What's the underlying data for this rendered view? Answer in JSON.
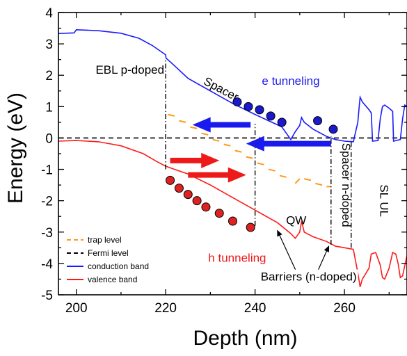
{
  "chart_data": {
    "type": "line",
    "xlabel": "Depth (nm)",
    "ylabel": "Energy (eV)",
    "xlim": [
      196,
      274
    ],
    "ylim": [
      -5,
      4
    ],
    "xticks": [
      200,
      220,
      240,
      260
    ],
    "yticks": [
      -5,
      -4,
      -3,
      -2,
      -1,
      0,
      1,
      2,
      3,
      4
    ],
    "grid": false,
    "legend_position": "bottom-left",
    "colors": {
      "conduction": "#1a1aff",
      "valence": "#ff1a1a",
      "trap": "#ff9a1a",
      "fermi": "#000000",
      "e_arrow": "#1a1aee",
      "h_arrow": "#ee1a1a"
    },
    "series": [
      {
        "name": "conduction band",
        "points": [
          [
            196,
            3.33
          ],
          [
            199.5,
            3.35
          ],
          [
            200,
            3.45
          ],
          [
            202,
            3.44
          ],
          [
            205,
            3.42
          ],
          [
            210,
            3.34
          ],
          [
            214,
            3.18
          ],
          [
            217,
            2.95
          ],
          [
            219,
            2.75
          ],
          [
            220,
            2.65
          ],
          [
            220.05,
            2.55
          ],
          [
            222,
            2.3
          ],
          [
            225,
            1.9
          ],
          [
            230,
            1.5
          ],
          [
            235,
            1.1
          ],
          [
            240,
            0.75
          ],
          [
            243,
            0.55
          ],
          [
            245,
            0.42
          ],
          [
            246,
            0.35
          ],
          [
            247,
            0.15
          ],
          [
            247.5,
            0.05
          ],
          [
            248,
            -0.05
          ],
          [
            249,
            0.2
          ],
          [
            250,
            0.4
          ],
          [
            250.4,
            0.65
          ],
          [
            251,
            0.5
          ],
          [
            253,
            0.28
          ],
          [
            256,
            0.05
          ],
          [
            258,
            -0.05
          ],
          [
            260,
            -0.1
          ],
          [
            262,
            -0.12
          ],
          [
            263,
            0.5
          ],
          [
            263.3,
            1.0
          ],
          [
            263.5,
            1.3
          ],
          [
            264,
            1.15
          ],
          [
            265.5,
            0.9
          ],
          [
            266,
            0.8
          ],
          [
            266.3,
            -0.1
          ],
          [
            267.5,
            -0.08
          ],
          [
            268,
            0.6
          ],
          [
            268.5,
            1.0
          ],
          [
            269,
            1.05
          ],
          [
            270,
            0.95
          ],
          [
            270.8,
            0.85
          ],
          [
            271,
            -0.1
          ],
          [
            272.5,
            -0.05
          ],
          [
            273,
            0.6
          ],
          [
            273.5,
            1.05
          ],
          [
            274,
            1.0
          ]
        ]
      },
      {
        "name": "valence band",
        "points": [
          [
            196,
            -0.1
          ],
          [
            200,
            -0.08
          ],
          [
            205,
            -0.12
          ],
          [
            210,
            -0.25
          ],
          [
            215,
            -0.5
          ],
          [
            218,
            -0.75
          ],
          [
            220,
            -0.9
          ],
          [
            222,
            -1.0
          ],
          [
            225,
            -1.15
          ],
          [
            230,
            -1.5
          ],
          [
            235,
            -1.9
          ],
          [
            240,
            -2.3
          ],
          [
            245,
            -2.7
          ],
          [
            248,
            -3.05
          ],
          [
            249,
            -3.2
          ],
          [
            250,
            -3.0
          ],
          [
            250.4,
            -2.65
          ],
          [
            251,
            -3.0
          ],
          [
            253,
            -3.15
          ],
          [
            256,
            -3.3
          ],
          [
            258,
            -3.45
          ],
          [
            260,
            -3.5
          ],
          [
            262,
            -3.55
          ],
          [
            263,
            -4.3
          ],
          [
            263.5,
            -4.75
          ],
          [
            264,
            -4.5
          ],
          [
            265.5,
            -4.15
          ],
          [
            266,
            -3.7
          ],
          [
            267,
            -3.65
          ],
          [
            268,
            -4.05
          ],
          [
            268.5,
            -4.45
          ],
          [
            269,
            -4.5
          ],
          [
            270,
            -4.15
          ],
          [
            270.8,
            -3.65
          ],
          [
            271.5,
            -3.7
          ],
          [
            272,
            -4.0
          ],
          [
            272.5,
            -4.45
          ],
          [
            273,
            -4.4
          ],
          [
            274,
            -3.75
          ]
        ]
      },
      {
        "name": "Fermi level",
        "points": [
          [
            196,
            0
          ],
          [
            274,
            0
          ]
        ]
      },
      {
        "name": "trap level",
        "points": [
          [
            220.5,
            0.75
          ],
          [
            222,
            0.7
          ],
          [
            223,
            0.55
          ],
          [
            224.5,
            0.5
          ],
          [
            225.5,
            0.35
          ],
          [
            227,
            0.3
          ],
          [
            228,
            0.15
          ],
          [
            229.5,
            0.1
          ],
          [
            230.5,
            -0.05
          ],
          [
            232,
            -0.1
          ],
          [
            233,
            -0.2
          ],
          [
            234.5,
            -0.25
          ],
          [
            235.5,
            -0.4
          ],
          [
            237,
            -0.45
          ],
          [
            238,
            -0.6
          ],
          [
            239.5,
            -0.65
          ],
          [
            240.5,
            -0.8
          ],
          [
            242,
            -0.85
          ],
          [
            243,
            -1.0
          ],
          [
            244.5,
            -1.05
          ],
          [
            245.5,
            -1.2
          ],
          [
            247,
            -1.25
          ],
          [
            249,
            -1.45
          ],
          [
            250,
            -1.3
          ],
          [
            251,
            -1.3
          ],
          [
            252.5,
            -1.35
          ],
          [
            253.5,
            -1.45
          ],
          [
            255,
            -1.5
          ],
          [
            256,
            -1.55
          ],
          [
            257,
            -1.55
          ]
        ]
      }
    ],
    "electron_dots": {
      "x": [
        236,
        238.5,
        241,
        243.5,
        246,
        254,
        257.5
      ],
      "y": [
        1.15,
        1.0,
        0.9,
        0.7,
        0.5,
        0.55,
        0.28
      ]
    },
    "hole_dots": {
      "x": [
        221,
        223,
        225,
        227,
        229,
        232,
        235,
        239
      ],
      "y": [
        -1.35,
        -1.6,
        -1.8,
        -2.0,
        -2.2,
        -2.4,
        -2.65,
        -2.85
      ]
    },
    "vertical_lines": [
      {
        "x": 220,
        "y1": -1.0,
        "y2": 2.5
      },
      {
        "x": 240,
        "y1": -2.8,
        "y2": 0.45
      },
      {
        "x": 257,
        "y1": -3.4,
        "y2": 0.05
      },
      {
        "x": 261.5,
        "y1": -3.5,
        "y2": -0.05
      }
    ],
    "e_arrows": [
      {
        "x_from": 239,
        "x_to": 226,
        "y": 0.42
      },
      {
        "x_from": 257,
        "x_to": 238,
        "y": -0.18
      }
    ],
    "h_arrows": [
      {
        "x_from": 221,
        "x_to": 232,
        "y": -0.72
      },
      {
        "x_from": 225,
        "x_to": 238,
        "y": -1.18
      }
    ],
    "barrier_pointers": [
      {
        "from": [
          249.2,
          -4.25
        ],
        "to": [
          245,
          -2.95
        ]
      },
      {
        "from": [
          254,
          -4.25
        ],
        "to": [
          256.5,
          -3.45
        ]
      }
    ],
    "annotations": {
      "ebl": {
        "text": "EBL p-doped",
        "x": 212,
        "y": 2.05
      },
      "spacer": {
        "text": "Spacer",
        "x": 232,
        "y": 1.45,
        "angle": 28
      },
      "e_tunneling": {
        "text": "e tunneling",
        "x": 248,
        "y": 1.7
      },
      "h_tunneling": {
        "text": "h tunneling",
        "x": 236,
        "y": -3.95
      },
      "qw": {
        "text": "QW",
        "x": 249.2,
        "y": -2.75
      },
      "spacer_n": {
        "text": "Spacer n-doped",
        "x": 259.5,
        "y": -1.5,
        "angle": 90
      },
      "sl_ul": {
        "text": "SL UL",
        "x": 268,
        "y": -2.0,
        "angle": 90
      },
      "barriers": {
        "text": "Barriers (n-doped)",
        "x": 252,
        "y": -4.55
      }
    }
  }
}
